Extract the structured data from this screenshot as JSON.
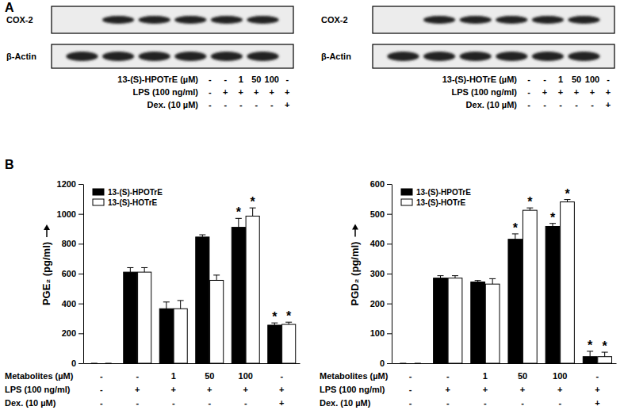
{
  "panel_labels": [
    "A",
    "B"
  ],
  "blots": [
    {
      "rows": [
        "COX-2",
        "β-Actin"
      ],
      "bands": [
        [
          false,
          true,
          true,
          true,
          true,
          true
        ],
        [
          true,
          true,
          true,
          true,
          true,
          true
        ]
      ],
      "conditions": [
        {
          "label": "13-(S)-HPOTrE (µM)",
          "values": [
            "-",
            "-",
            "1",
            "50",
            "100",
            "-"
          ]
        },
        {
          "label": "LPS (100 ng/ml)",
          "values": [
            "-",
            "+",
            "+",
            "+",
            "+",
            "+"
          ]
        },
        {
          "label": "Dex. (10 µM)",
          "values": [
            "-",
            "-",
            "-",
            "-",
            "-",
            "+"
          ]
        }
      ]
    },
    {
      "rows": [
        "COX-2",
        "β-Actin"
      ],
      "bands": [
        [
          false,
          true,
          true,
          true,
          true,
          true
        ],
        [
          true,
          true,
          true,
          true,
          true,
          true
        ]
      ],
      "conditions": [
        {
          "label": "13-(S)-HOTrE (µM)",
          "values": [
            "-",
            "-",
            "1",
            "50",
            "100",
            "-"
          ]
        },
        {
          "label": "LPS (100 ng/ml)",
          "values": [
            "-",
            "+",
            "+",
            "+",
            "+",
            "+"
          ]
        },
        {
          "label": "Dex. (10 µM)",
          "values": [
            "-",
            "-",
            "-",
            "-",
            "-",
            "+"
          ]
        }
      ]
    }
  ],
  "chart_data": [
    {
      "type": "bar",
      "y_label": "PGE₂ (pg/ml)",
      "categories": [
        null,
        null,
        null,
        null,
        null,
        null
      ],
      "ylim": [
        0,
        1200
      ],
      "yticks": [
        0,
        200,
        400,
        600,
        800,
        1000,
        1200
      ],
      "legend": "upper left",
      "series": [
        {
          "name": "13-(S)-HPOTrE",
          "color": "#000000",
          "values": [
            0,
            610,
            365,
            845,
            910,
            255
          ],
          "errors": [
            0,
            30,
            45,
            15,
            60,
            15
          ]
        },
        {
          "name": "13-(S)-HOTrE",
          "color": "#ffffff",
          "values": [
            0,
            610,
            365,
            555,
            985,
            260
          ],
          "errors": [
            0,
            30,
            55,
            35,
            55,
            15
          ]
        }
      ],
      "annotations": [
        {
          "text": "*",
          "series": 0,
          "index": 4
        },
        {
          "text": "*",
          "series": 1,
          "index": 4
        },
        {
          "text": "*",
          "series": 0,
          "index": 5
        },
        {
          "text": "*",
          "series": 1,
          "index": 5
        }
      ]
    },
    {
      "type": "bar",
      "y_label": "PGD₂ (pg/ml)",
      "categories": [
        null,
        null,
        null,
        null,
        null,
        null
      ],
      "ylim": [
        0,
        600
      ],
      "yticks": [
        0,
        100,
        200,
        300,
        400,
        500,
        600
      ],
      "legend": "upper left",
      "series": [
        {
          "name": "13-(S)-HPOTrE",
          "color": "#000000",
          "values": [
            0,
            285,
            272,
            415,
            458,
            22
          ],
          "errors": [
            0,
            8,
            5,
            18,
            10,
            18
          ]
        },
        {
          "name": "13-(S)-HOTrE",
          "color": "#ffffff",
          "values": [
            0,
            285,
            265,
            512,
            540,
            22
          ],
          "errors": [
            0,
            8,
            18,
            8,
            8,
            15
          ]
        }
      ],
      "annotations": [
        {
          "text": "*",
          "series": 0,
          "index": 3
        },
        {
          "text": "*",
          "series": 1,
          "index": 3
        },
        {
          "text": "*",
          "series": 0,
          "index": 4
        },
        {
          "text": "*",
          "series": 1,
          "index": 4
        },
        {
          "text": "*",
          "series": 0,
          "index": 5
        },
        {
          "text": "*",
          "series": 1,
          "index": 5
        }
      ]
    }
  ],
  "condition_tables": [
    [
      {
        "label": "Metabolites (µM)",
        "values": [
          "-",
          "-",
          "1",
          "50",
          "100",
          "-"
        ]
      },
      {
        "label": "LPS (100 ng/ml)",
        "values": [
          "-",
          "+",
          "+",
          "+",
          "+",
          "+"
        ]
      },
      {
        "label": "Dex. (10 µM)",
        "values": [
          "-",
          "-",
          "-",
          "-",
          "-",
          "+"
        ]
      }
    ],
    [
      {
        "label": "Metabolites (µM)",
        "values": [
          "-",
          "-",
          "1",
          "50",
          "100",
          "-"
        ]
      },
      {
        "label": "LPS (100 ng/ml)",
        "values": [
          "-",
          "+",
          "+",
          "+",
          "+",
          "+"
        ]
      },
      {
        "label": "Dex. (10 µM)",
        "values": [
          "-",
          "-",
          "-",
          "-",
          "-",
          "+"
        ]
      }
    ]
  ]
}
